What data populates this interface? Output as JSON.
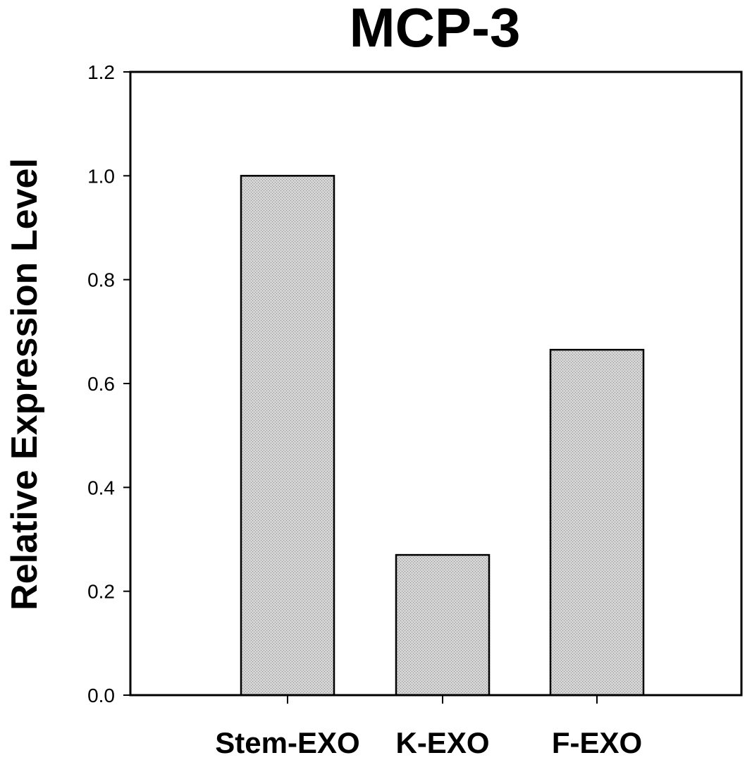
{
  "chart_data": {
    "type": "bar",
    "title": "MCP-3",
    "xlabel": "",
    "ylabel": "Relative Expression Level",
    "categories": [
      "Stem-EXO",
      "K-EXO",
      "F-EXO"
    ],
    "values": [
      1.0,
      0.27,
      0.665
    ],
    "ylim": [
      0,
      1.2
    ],
    "yticks": [
      "0.0",
      "0.2",
      "0.4",
      "0.6",
      "0.8",
      "1.0",
      "1.2"
    ],
    "grid": false,
    "legend": "none",
    "bar_fill": "#cfcfcf",
    "bar_pattern": "stipple"
  }
}
